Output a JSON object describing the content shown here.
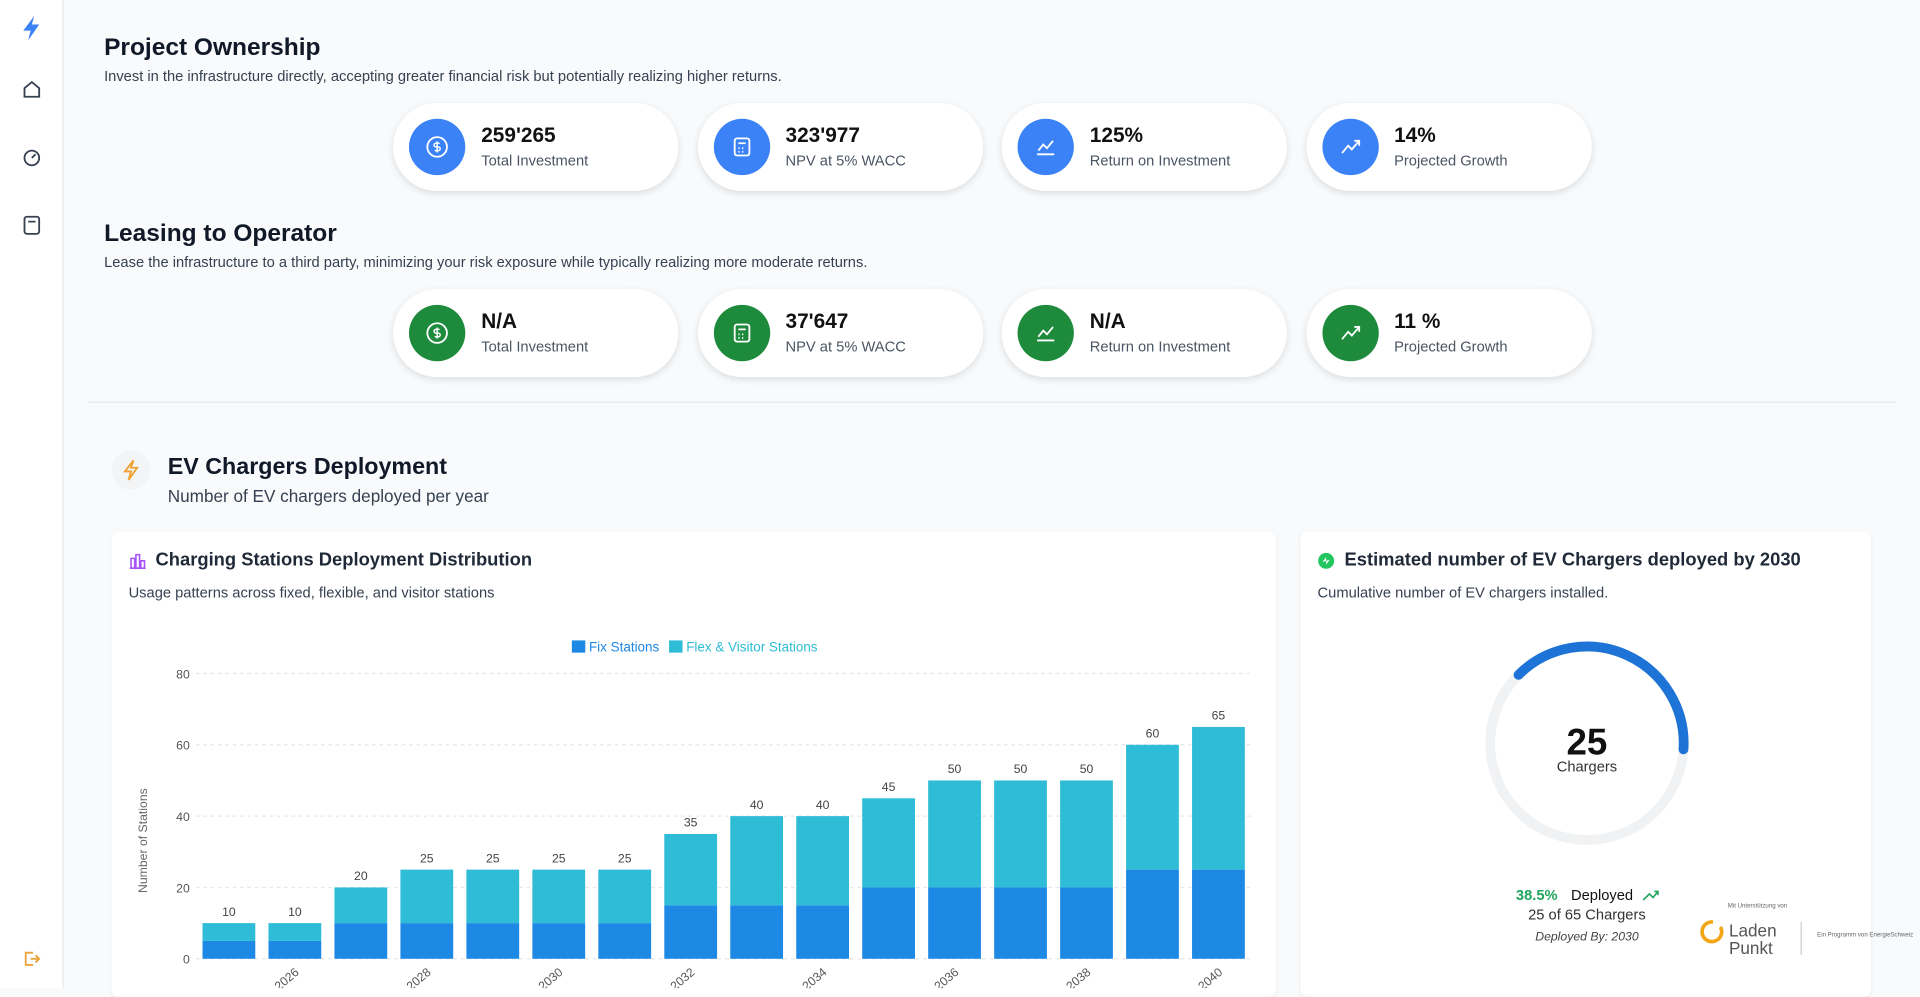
{
  "sections": [
    {
      "title": "Project Ownership",
      "description": "Invest in the infrastructure directly, accepting greater financial risk but potentially realizing higher returns.",
      "color": "#3b82f6",
      "metrics": [
        {
          "value": "259'265",
          "label": "Total Investment"
        },
        {
          "value": "323'977",
          "label": "NPV at 5% WACC"
        },
        {
          "value": "125%",
          "label": "Return on Investment"
        },
        {
          "value": "14%",
          "label": "Projected Growth"
        }
      ]
    },
    {
      "title": "Leasing to Operator",
      "description": "Lease the infrastructure to a third party, minimizing your risk exposure while typically realizing more moderate returns.",
      "color": "#1e8a3c",
      "metrics": [
        {
          "value": "N/A",
          "label": "Total Investment"
        },
        {
          "value": "37'647",
          "label": "NPV at 5% WACC"
        },
        {
          "value": "N/A",
          "label": "Return on Investment"
        },
        {
          "value": "11 %",
          "label": "Projected Growth"
        }
      ]
    }
  ],
  "deployment": {
    "title": "EV Chargers Deployment",
    "subtitle": "Number of EV chargers deployed per year"
  },
  "chart_data": {
    "type": "stacked_bar",
    "title": "Charging Stations Deployment Distribution",
    "subtitle": "Usage patterns across fixed, flexible, and visitor stations",
    "categories": [
      null,
      "2026",
      null,
      "2028",
      null,
      "2030",
      null,
      "2032",
      null,
      "2034",
      null,
      "2036",
      null,
      "2038",
      null,
      "2040"
    ],
    "series": [
      {
        "name": "Fix Stations",
        "color": "#1e88e5",
        "values": [
          5,
          5,
          10,
          10,
          10,
          10,
          10,
          15,
          15,
          15,
          20,
          20,
          20,
          20,
          25,
          25
        ]
      },
      {
        "name": "Flex & Visitor Stations",
        "color": "#2ebcd6",
        "values": [
          5,
          5,
          10,
          15,
          15,
          15,
          15,
          20,
          25,
          25,
          25,
          30,
          30,
          30,
          35,
          40
        ]
      }
    ],
    "totals": [
      10,
      10,
      20,
      25,
      25,
      25,
      25,
      35,
      40,
      40,
      45,
      50,
      50,
      50,
      60,
      65
    ],
    "ylim": [
      0,
      80
    ],
    "yticks": [
      0,
      20,
      40,
      60,
      80
    ],
    "ylabel": "Number of Stations",
    "grid": true,
    "legend": "top"
  },
  "gauge": {
    "title": "Estimated number of EV Chargers deployed by 2030",
    "subtitle": "Cumulative number of EV chargers installed.",
    "value": 25,
    "unit": "Chargers",
    "percent": 38.5,
    "percent_label": "38.5%",
    "status": "Deployed",
    "detail": "25 of 65 Chargers",
    "deployed_by": "Deployed By: 2030",
    "color": "#1e74d6"
  },
  "logo": {
    "support": "Mit Unterstützung von",
    "name_1": "Laden",
    "name_2": "Punkt",
    "program": "Ein Programm von EnergieSchweiz"
  }
}
